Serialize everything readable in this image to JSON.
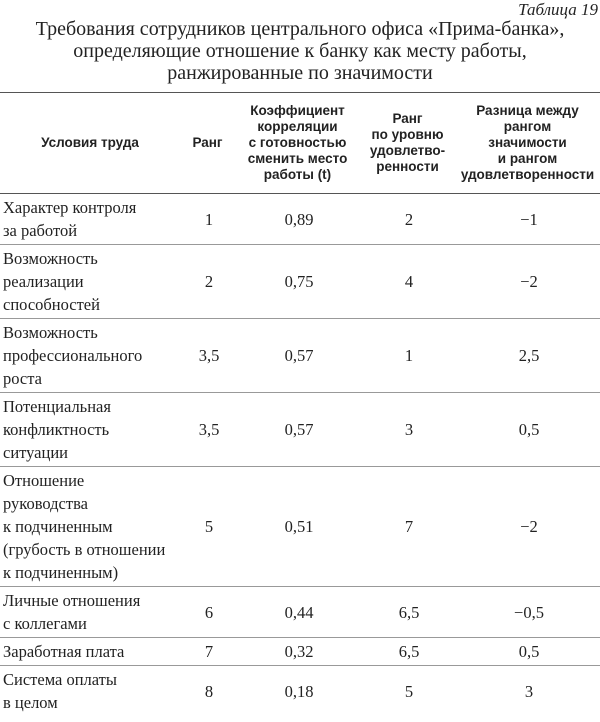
{
  "caption": "Таблица 19",
  "title": [
    "Требования сотрудников центрального офиса «Прима-банка»,",
    "определяющие отношение к банку как месту работы,",
    "ранжированные по значимости"
  ],
  "table": {
    "header": [
      [
        "Условия труда"
      ],
      [
        "Ранг"
      ],
      [
        "Коэффициент",
        "корреляции",
        "с готовностью",
        "сменить место",
        "работы (t)"
      ],
      [
        "Ранг",
        "по уровню",
        "удовлетво-",
        "ренности"
      ],
      [
        "Разница между",
        "рангом",
        "значимости",
        "и рангом",
        "удовлетворенности"
      ]
    ],
    "rows": [
      [
        [
          "Характер контроля",
          "за работой"
        ],
        "1",
        "0,89",
        "2",
        "−1"
      ],
      [
        [
          "Возможность",
          "реализации",
          "способностей"
        ],
        "2",
        "0,75",
        "4",
        "−2"
      ],
      [
        [
          "Возможность",
          "профессионального",
          "роста"
        ],
        "3,5",
        "0,57",
        "1",
        "2,5"
      ],
      [
        [
          "Потенциальная",
          "конфликтность",
          "ситуации"
        ],
        "3,5",
        "0,57",
        "3",
        "0,5"
      ],
      [
        [
          "Отношение",
          "руководства",
          "к подчиненным",
          "(грубость в отношении",
          "к подчиненным)"
        ],
        "5",
        "0,51",
        "7",
        "−2"
      ],
      [
        [
          "Личные отношения",
          "с коллегами"
        ],
        "6",
        "0,44",
        "6,5",
        "−0,5"
      ],
      [
        [
          "Заработная плата"
        ],
        "7",
        "0,32",
        "6,5",
        "0,5"
      ],
      [
        [
          "Система оплаты",
          "в целом"
        ],
        "8",
        "0,18",
        "5",
        "3"
      ]
    ]
  }
}
